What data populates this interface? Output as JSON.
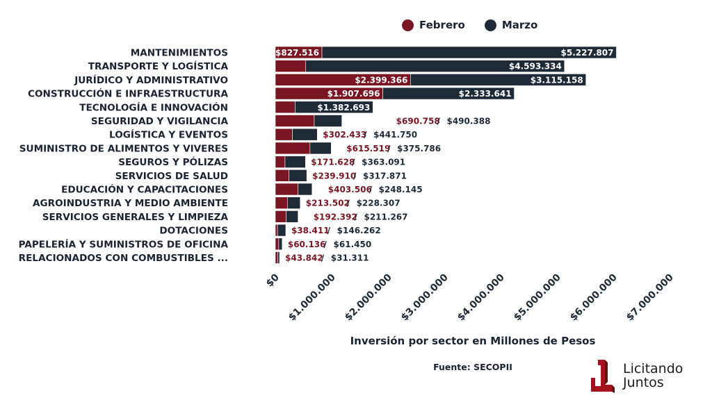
{
  "legend": [
    {
      "label": "Febrero",
      "color": "#7a1623"
    },
    {
      "label": "Marzo",
      "color": "#1f2a37"
    }
  ],
  "footer": {
    "source": "Fuente: SECOPII",
    "logo_line1": "Licitando",
    "logo_line2": "Juntos"
  },
  "chart_data": {
    "type": "bar",
    "orientation": "horizontal",
    "stacked": true,
    "title": "",
    "xlabel": "Inversión por sector en Millones de Pesos",
    "ylabel": "",
    "xlim": [
      0,
      7000000
    ],
    "xticks": [
      0,
      1000000,
      2000000,
      3000000,
      4000000,
      5000000,
      6000000,
      7000000
    ],
    "xtick_labels": [
      "$0",
      "$1.000.000",
      "$2.000.000",
      "$3.000.000",
      "$4.000.000",
      "$5.000.000",
      "$6.000.000",
      "$7.000.000"
    ],
    "grid": false,
    "legend_position": "top-right",
    "categories": [
      "MANTENIMIENTOS",
      "TRANSPORTE Y LOGÍSTICA",
      "JURÍDICO Y ADMINISTRATIVO",
      "CONSTRUCCIÓN E INFRAESTRUCTURA",
      "TECNOLOGÍA E INNOVACIÓN",
      "SEGURIDAD Y VIGILANCIA",
      "LOGÍSTICA Y EVENTOS",
      "SUMINISTRO DE ALIMENTOS Y VIVERES",
      "SEGUROS Y PÓLIZAS",
      "SERVICIOS DE SALUD",
      "EDUCACIÓN Y CAPACITACIONES",
      "AGROINDUSTRIA Y MEDIO AMBIENTE",
      "SERVICIOS GENERALES Y LIMPIEZA",
      "DOTACIONES",
      "PAPELERÍA Y SUMINISTROS DE OFICINA",
      "RELACIONADOS CON COMBUSTIBLES ..."
    ],
    "series": [
      {
        "name": "Febrero",
        "color": "#7a1623",
        "values": [
          827516,
          540000,
          2399366,
          1907696,
          350000,
          690758,
          302433,
          615519,
          171628,
          239910,
          403506,
          213502,
          192392,
          38411,
          60136,
          43842
        ],
        "labels": [
          "$827.516",
          "",
          "$2.399.366",
          "$1.907.696",
          "",
          "$690.758",
          "$302.433",
          "$615.519",
          "$171.628",
          "$239.910",
          "$403.506",
          "$213.502",
          "$192.392",
          "$38.411",
          "$60.136",
          "$43.842"
        ]
      },
      {
        "name": "Marzo",
        "color": "#1f2a37",
        "values": [
          5227807,
          4593334,
          3115158,
          2333641,
          1382693,
          490388,
          441750,
          375786,
          363091,
          317871,
          248145,
          228307,
          211267,
          146262,
          61450,
          31311
        ],
        "labels": [
          "$5.227.807",
          "$4.593.334",
          "$3.115.158",
          "$2.333.641",
          "$1.382.693",
          "$490.388",
          "$441.750",
          "$375.786",
          "$363.091",
          "$317.871",
          "$248.145",
          "$228.307",
          "$211.267",
          "$146.262",
          "$61.450",
          "$31.311"
        ]
      }
    ],
    "label_mode": [
      "inside",
      "inside",
      "inside",
      "inside",
      "inside",
      "outside",
      "outside",
      "outside",
      "outside",
      "outside",
      "outside",
      "outside",
      "outside",
      "outside",
      "outside",
      "outside"
    ],
    "separator": "/"
  }
}
